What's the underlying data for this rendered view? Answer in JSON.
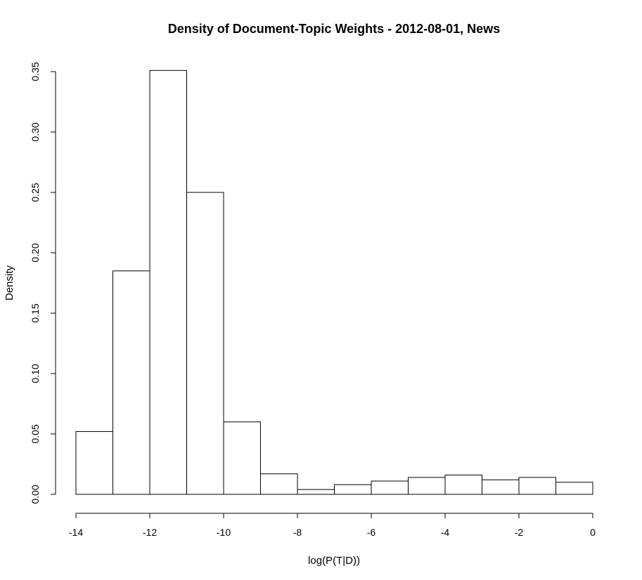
{
  "chart_data": {
    "type": "bar",
    "subtype": "histogram",
    "title": "Density of Document-Topic Weights - 2012-08-01, News",
    "xlabel": "log(P(T|D))",
    "ylabel": "Density",
    "xlim": [
      -14,
      0
    ],
    "ylim": [
      0,
      0.35
    ],
    "grid": false,
    "bin_edges": [
      -14,
      -13,
      -12,
      -11,
      -10,
      -9,
      -8,
      -7,
      -6,
      -5,
      -4,
      -3,
      -2,
      -1,
      0
    ],
    "values": [
      0.052,
      0.185,
      0.351,
      0.25,
      0.06,
      0.017,
      0.004,
      0.008,
      0.011,
      0.014,
      0.016,
      0.012,
      0.014,
      0.01
    ],
    "x_ticks": [
      -14,
      -12,
      -10,
      -8,
      -6,
      -4,
      -2,
      0
    ],
    "x_tick_labels": [
      "-14",
      "-12",
      "-10",
      "-8",
      "-6",
      "-4",
      "-2",
      "0"
    ],
    "y_ticks": [
      0,
      0.05,
      0.1,
      0.15,
      0.2,
      0.25,
      0.3,
      0.35
    ],
    "y_tick_labels": [
      "0.00",
      "0.05",
      "0.10",
      "0.15",
      "0.20",
      "0.25",
      "0.30",
      "0.35"
    ],
    "colors": {
      "bar_fill": "#ffffff",
      "bar_stroke": "#000000",
      "axis": "#000000"
    }
  }
}
